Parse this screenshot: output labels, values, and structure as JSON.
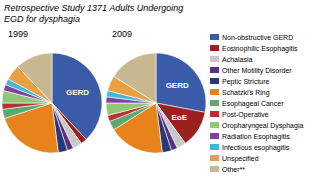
{
  "title": "Retrospective Study 1371 Adults Undergoing\nEGD for dysphagia",
  "chart_data": [
    {
      "type": "pie",
      "title": "1999",
      "categories": [
        "Non-obstructive GERD",
        "Eosinophilic Esophagitis",
        "Achalasia",
        "Other Motility Disorder",
        "Peptic Stricture",
        "Schatzki's Ring",
        "Esophageal Cancer",
        "Post-Operative",
        "Oropharyngeal Dysphagia",
        "Radiation Esophagitis",
        "Infectious esophagitis",
        "Unspecified",
        "Other**"
      ],
      "values": [
        38,
        2,
        3,
        2,
        3,
        22,
        3,
        2,
        4,
        2,
        2,
        5,
        12
      ],
      "colors": [
        "#3a5ca8",
        "#9b2020",
        "#c8c8c8",
        "#5a3080",
        "#283878",
        "#e8821a",
        "#5aaa70",
        "#b83030",
        "#90c878",
        "#8040a0",
        "#40b8d8",
        "#e8a040",
        "#c8b890"
      ],
      "annotations": [
        {
          "text": "GERD",
          "category": "Non-obstructive GERD"
        }
      ]
    },
    {
      "type": "pie",
      "title": "2009",
      "categories": [
        "Non-obstructive GERD",
        "Eosinophilic Esophagitis",
        "Achalasia",
        "Other Motility Disorder",
        "Peptic Stricture",
        "Schatzki's Ring",
        "Esophageal Cancer",
        "Post-Operative",
        "Oropharyngeal Dysphagia",
        "Radiation Esophagitis",
        "Infectious esophagitis",
        "Unspecified",
        "Other**"
      ],
      "values": [
        28,
        12,
        3,
        2,
        3,
        18,
        3,
        2,
        4,
        2,
        2,
        5,
        16
      ],
      "colors": [
        "#3a5ca8",
        "#9b2020",
        "#c8c8c8",
        "#5a3080",
        "#283878",
        "#e8821a",
        "#5aaa70",
        "#b83030",
        "#90c878",
        "#8040a0",
        "#40b8d8",
        "#e8a040",
        "#c8b890"
      ],
      "annotations": [
        {
          "text": "GERD",
          "category": "Non-obstructive GERD"
        },
        {
          "text": "EoE",
          "category": "Eosinophilic Esophagitis"
        }
      ],
      "legend": "right"
    }
  ]
}
